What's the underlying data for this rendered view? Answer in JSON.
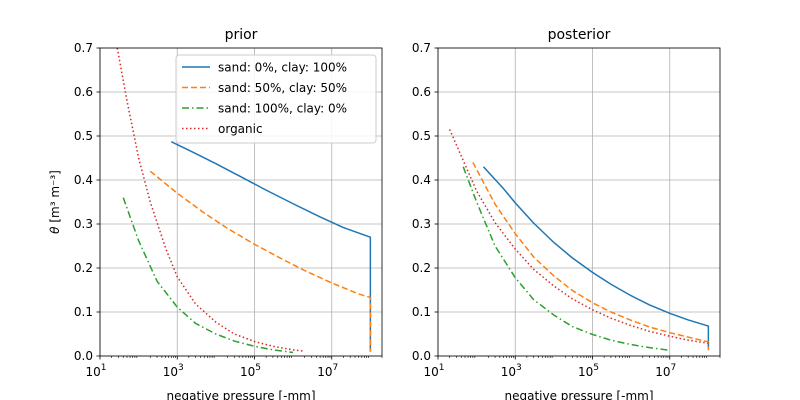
{
  "chart_data": [
    {
      "type": "line",
      "title": "prior",
      "xlabel": "negative pressure [-mm]",
      "ylabel_math": "θ",
      "ylabel_unit": "m³ m⁻³",
      "xscale": "log",
      "xlim": [
        10,
        200000000
      ],
      "ylim": [
        0,
        0.7
      ],
      "xticks": [
        10,
        1000,
        100000,
        10000000
      ],
      "xticklabels": [
        {
          "base": "10",
          "exp": "1"
        },
        {
          "base": "10",
          "exp": "3"
        },
        {
          "base": "10",
          "exp": "5"
        },
        {
          "base": "10",
          "exp": "7"
        }
      ],
      "yticks": [
        "0.0",
        "0.1",
        "0.2",
        "0.3",
        "0.4",
        "0.5",
        "0.6",
        "0.7"
      ],
      "grid": true,
      "legend": "top-right",
      "series": [
        {
          "name": "sand: 0%, clay: 100%",
          "color": "#1f77b4",
          "dash": "solid",
          "x": [
            700,
            3000,
            10000,
            50000,
            200000,
            1000000,
            5000000,
            20000000,
            100000000,
            100000000,
            100000000
          ],
          "y": [
            0.487,
            0.46,
            0.437,
            0.405,
            0.377,
            0.346,
            0.316,
            0.292,
            0.27,
            0.15,
            0.01
          ]
        },
        {
          "name": "sand: 50%, clay: 50%",
          "color": "#ff7f0e",
          "dash": "dashed",
          "x": [
            200,
            1000,
            5000,
            20000,
            100000,
            500000,
            2000000,
            10000000,
            50000000,
            100000000,
            100000000
          ],
          "y": [
            0.42,
            0.37,
            0.325,
            0.29,
            0.254,
            0.221,
            0.194,
            0.166,
            0.141,
            0.133,
            0.01
          ]
        },
        {
          "name": "sand: 100%, clay: 0%",
          "color": "#2ca02c",
          "dash": "dashdot",
          "x": [
            40,
            100,
            300,
            1000,
            3000,
            10000,
            30000,
            100000,
            300000,
            1000000
          ],
          "y": [
            0.36,
            0.262,
            0.17,
            0.111,
            0.074,
            0.05,
            0.034,
            0.022,
            0.014,
            0.008
          ]
        },
        {
          "name": "organic",
          "color": "#d62728",
          "dash": "dotted",
          "x": [
            28,
            50,
            100,
            200,
            500,
            1000,
            3000,
            10000,
            30000,
            100000,
            300000,
            1000000,
            2000000
          ],
          "y": [
            0.7,
            0.58,
            0.45,
            0.35,
            0.245,
            0.18,
            0.118,
            0.077,
            0.05,
            0.033,
            0.022,
            0.014,
            0.011
          ]
        }
      ]
    },
    {
      "type": "line",
      "title": "posterior",
      "xlabel": "negative pressure [-mm]",
      "xscale": "log",
      "xlim": [
        10,
        200000000
      ],
      "ylim": [
        0,
        0.7
      ],
      "xticks": [
        10,
        1000,
        100000,
        10000000
      ],
      "xticklabels": [
        {
          "base": "10",
          "exp": "1"
        },
        {
          "base": "10",
          "exp": "3"
        },
        {
          "base": "10",
          "exp": "5"
        },
        {
          "base": "10",
          "exp": "7"
        }
      ],
      "yticks": [
        "0.0",
        "0.1",
        "0.2",
        "0.3",
        "0.4",
        "0.5",
        "0.6",
        "0.7"
      ],
      "grid": true,
      "series": [
        {
          "name": "sand: 0%, clay: 100%",
          "color": "#1f77b4",
          "dash": "solid",
          "x": [
            150,
            500,
            1000,
            3000,
            10000,
            30000,
            100000,
            300000,
            1000000,
            3000000,
            10000000,
            30000000,
            100000000,
            100000000
          ],
          "y": [
            0.43,
            0.38,
            0.348,
            0.302,
            0.258,
            0.223,
            0.19,
            0.163,
            0.137,
            0.116,
            0.097,
            0.082,
            0.068,
            0.02
          ]
        },
        {
          "name": "sand: 50%, clay: 50%",
          "color": "#ff7f0e",
          "dash": "dashed",
          "x": [
            80,
            300,
            1000,
            3000,
            10000,
            30000,
            100000,
            300000,
            1000000,
            3000000,
            10000000,
            30000000,
            100000000,
            100000000
          ],
          "y": [
            0.44,
            0.345,
            0.278,
            0.225,
            0.182,
            0.149,
            0.121,
            0.1,
            0.081,
            0.066,
            0.053,
            0.043,
            0.032,
            0.013
          ]
        },
        {
          "name": "sand: 100%, clay: 0%",
          "color": "#2ca02c",
          "dash": "dashdot",
          "x": [
            45,
            100,
            300,
            1000,
            3000,
            10000,
            30000,
            100000,
            300000,
            1000000,
            3000000,
            10000000
          ],
          "y": [
            0.43,
            0.35,
            0.25,
            0.178,
            0.128,
            0.093,
            0.067,
            0.049,
            0.036,
            0.026,
            0.019,
            0.013
          ]
        },
        {
          "name": "organic",
          "color": "#d62728",
          "dash": "dotted",
          "x": [
            20,
            50,
            100,
            300,
            1000,
            3000,
            10000,
            30000,
            100000,
            300000,
            1000000,
            3000000,
            10000000,
            30000000,
            100000000
          ],
          "y": [
            0.515,
            0.435,
            0.375,
            0.303,
            0.243,
            0.197,
            0.159,
            0.13,
            0.105,
            0.086,
            0.069,
            0.056,
            0.045,
            0.036,
            0.029
          ]
        }
      ]
    }
  ]
}
